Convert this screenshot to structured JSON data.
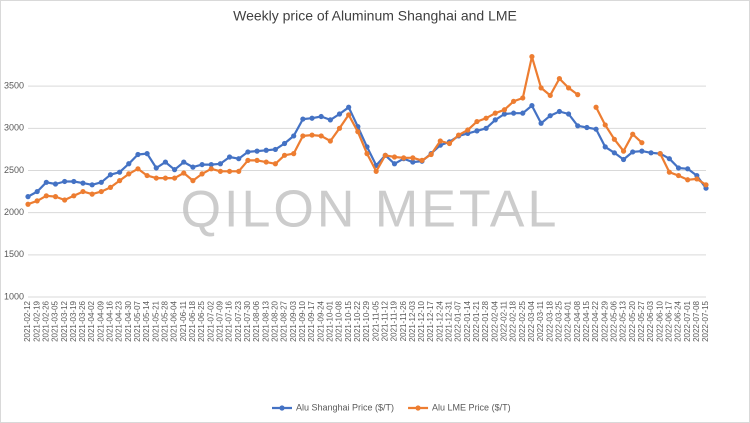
{
  "chart_data": {
    "type": "line",
    "title": "Weekly price of Aluminum Shanghai and LME",
    "watermark": "QILON METAL",
    "x": [
      "2021-02-12",
      "2021-02-19",
      "2021-02-26",
      "2021-03-05",
      "2021-03-12",
      "2021-03-19",
      "2021-03-26",
      "2021-04-02",
      "2021-04-09",
      "2021-04-16",
      "2021-04-23",
      "2021-04-30",
      "2021-05-07",
      "2021-05-14",
      "2021-05-21",
      "2021-05-28",
      "2021-06-04",
      "2021-06-11",
      "2021-06-18",
      "2021-06-25",
      "2021-07-02",
      "2021-07-09",
      "2021-07-16",
      "2021-07-23",
      "2021-07-30",
      "2021-08-06",
      "2021-08-13",
      "2021-08-20",
      "2021-08-27",
      "2021-09-03",
      "2021-09-10",
      "2021-09-17",
      "2021-09-24",
      "2021-10-01",
      "2021-10-08",
      "2021-10-15",
      "2021-10-22",
      "2021-10-29",
      "2021-11-05",
      "2021-11-12",
      "2021-11-19",
      "2021-11-26",
      "2021-12-03",
      "2021-12-10",
      "2021-12-17",
      "2021-12-24",
      "2021-12-31",
      "2022-01-07",
      "2022-01-14",
      "2022-01-21",
      "2022-01-28",
      "2022-02-04",
      "2022-02-11",
      "2022-02-18",
      "2022-02-25",
      "2022-03-04",
      "2022-03-11",
      "2022-03-18",
      "2022-03-25",
      "2022-04-01",
      "2022-04-08",
      "2022-04-15",
      "2022-04-22",
      "2022-04-29",
      "2022-05-06",
      "2022-05-13",
      "2022-05-20",
      "2022-05-27",
      "2022-06-03",
      "2022-06-10",
      "2022-06-17",
      "2022-06-24",
      "2022-07-01",
      "2022-07-08",
      "2022-07-15"
    ],
    "series": [
      {
        "name": "Alu Shanghai Price ($/T)",
        "color": "#4472c4",
        "values": [
          2190,
          2250,
          2360,
          2340,
          2370,
          2370,
          2350,
          2330,
          2360,
          2450,
          2480,
          2580,
          2690,
          2700,
          2530,
          2600,
          2510,
          2600,
          2540,
          2570,
          2570,
          2580,
          2660,
          2640,
          2720,
          2730,
          2740,
          2750,
          2820,
          2910,
          3110,
          3120,
          3140,
          3100,
          3170,
          3250,
          3020,
          2780,
          2560,
          2680,
          2580,
          2640,
          2600,
          2610,
          2700,
          2800,
          2840,
          2910,
          2940,
          2970,
          3000,
          3100,
          3170,
          3180,
          3180,
          3270,
          3060,
          3150,
          3200,
          3170,
          3030,
          3010,
          2990,
          2780,
          2710,
          2630,
          2720,
          2730,
          2710,
          2700,
          2640,
          2530,
          2520,
          2440,
          2290
        ]
      },
      {
        "name": "Alu LME Price ($/T)",
        "color": "#ed7d31",
        "values": [
          2100,
          2140,
          2200,
          2190,
          2150,
          2200,
          2250,
          2220,
          2250,
          2300,
          2380,
          2460,
          2520,
          2440,
          2410,
          2410,
          2410,
          2470,
          2380,
          2460,
          2520,
          2490,
          2490,
          2490,
          2620,
          2620,
          2600,
          2580,
          2680,
          2700,
          2910,
          2920,
          2910,
          2850,
          3000,
          3160,
          2960,
          2700,
          2490,
          2680,
          2660,
          2650,
          2650,
          2620,
          2690,
          2850,
          2820,
          2920,
          2980,
          3080,
          3120,
          3180,
          3220,
          3320,
          3360,
          3850,
          3480,
          3390,
          3590,
          3480,
          3400,
          null,
          3250,
          3040,
          2870,
          2730,
          2930,
          2830,
          null,
          2700,
          2480,
          2440,
          2390,
          2400,
          2330
        ]
      }
    ],
    "ylim": [
      1000,
      4000
    ],
    "yticks": [
      1000,
      1500,
      2000,
      2500,
      3000,
      3500
    ],
    "grid": true,
    "legend": "bottom"
  }
}
